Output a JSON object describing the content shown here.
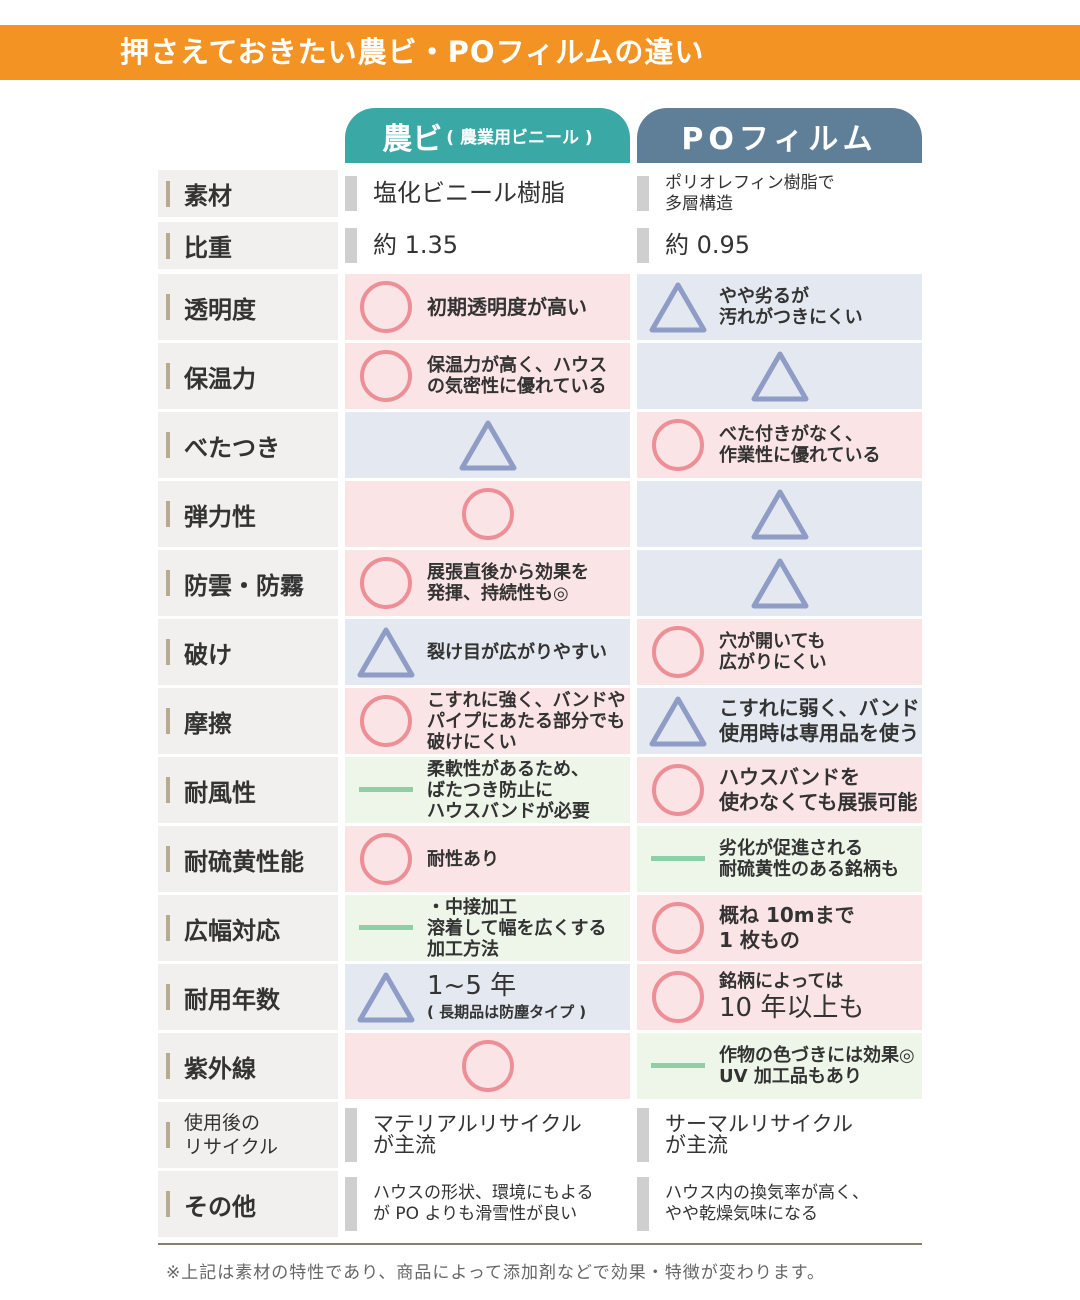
{
  "title": "押さえておきたい農ビ・POフィルムの違い",
  "columns": {
    "col1_main": "農ビ",
    "col1_sub": "( 農業用ビニール )",
    "col2": "POフィルム"
  },
  "colors": {
    "banner": "#f39323",
    "col1": "#3aa9a6",
    "col2": "#5f7f99",
    "circle": "#ec8f96",
    "triangle": "#8e9cc6",
    "dash": "#8fcfa8"
  },
  "rows": [
    {
      "label": "素材",
      "plain": true,
      "c1": {
        "text": "塩化ビニール樹脂",
        "size": "big"
      },
      "c2": {
        "text": "ポリオレフィン樹脂で\n多層構造",
        "size": "sm"
      }
    },
    {
      "label": "比重",
      "plain": true,
      "c1": {
        "text": "約 1.35",
        "size": "big"
      },
      "c2": {
        "text": "約 0.95",
        "size": "big"
      }
    },
    {
      "label": "透明度",
      "c1": {
        "mark": "circle",
        "text": "初期透明度が高い",
        "size": "lg"
      },
      "c2": {
        "mark": "triangle",
        "text": "やや劣るが\n汚れがつきにくい"
      }
    },
    {
      "label": "保温力",
      "c1": {
        "mark": "circle",
        "text": "保温力が高く、ハウス\nの気密性に優れている"
      },
      "c2": {
        "mark": "triangle"
      }
    },
    {
      "label": "べたつき",
      "c1": {
        "mark": "triangle"
      },
      "c2": {
        "mark": "circle",
        "text": "べた付きがなく、\n作業性に優れている"
      }
    },
    {
      "label": "弾力性",
      "c1": {
        "mark": "circle"
      },
      "c2": {
        "mark": "triangle"
      }
    },
    {
      "label": "防雲・防霧",
      "c1": {
        "mark": "circle",
        "text": "展張直後から効果を\n発揮、持続性も◎"
      },
      "c2": {
        "mark": "triangle"
      }
    },
    {
      "label": "破け",
      "c1": {
        "mark": "triangle",
        "text": "裂け目が広がりやすい"
      },
      "c2": {
        "mark": "circle",
        "text": "穴が開いても\n広がりにくい"
      }
    },
    {
      "label": "摩擦",
      "c1": {
        "mark": "circle",
        "text": "こすれに強く、バンドや\nパイプにあたる部分でも\n破けにくい"
      },
      "c2": {
        "mark": "triangle",
        "text": "こすれに弱く、バンド\n使用時は専用品を使う",
        "size": "lg"
      }
    },
    {
      "label": "耐風性",
      "c1": {
        "mark": "dash",
        "text": "柔軟性があるため、\nばたつき防止に\nハウスバンドが必要"
      },
      "c2": {
        "mark": "circle",
        "text": "ハウスバンドを\n使わなくても展張可能",
        "size": "lg"
      }
    },
    {
      "label": "耐硫黄性能",
      "c1": {
        "mark": "circle",
        "text": "耐性あり"
      },
      "c2": {
        "mark": "dash",
        "text": "劣化が促進される\n耐硫黄性のある銘柄も"
      }
    },
    {
      "label": "広幅対応",
      "c1": {
        "mark": "dash",
        "text": "・中接加工\n溶着して幅を広くする\n加工方法"
      },
      "c2": {
        "mark": "circle",
        "text": "概ね 10mまで\n1 枚もの",
        "size": "lg"
      }
    },
    {
      "label": "耐用年数",
      "c1": {
        "mark": "triangle",
        "text": "1~5 年",
        "sub": "( 長期品は防塵タイプ )"
      },
      "c2": {
        "mark": "circle",
        "text": "銘柄によっては",
        "big": "10 年以上も"
      }
    },
    {
      "label": "紫外線",
      "c1": {
        "mark": "circle"
      },
      "c2": {
        "mark": "dash",
        "text": "作物の色づきには効果◎\nUV 加工品もあり"
      }
    },
    {
      "label": "使用後の\nリサイクル",
      "labelSmall": true,
      "plain": true,
      "c1": {
        "text": "マテリアルリサイクル\nが主流"
      },
      "c2": {
        "text": "サーマルリサイクル\nが主流"
      }
    },
    {
      "label": "その他",
      "plain": true,
      "c1": {
        "text": "ハウスの形状、環境にもよる\nが PO よりも滑雪性が良い",
        "size": "sm"
      },
      "c2": {
        "text": "ハウス内の換気率が高く、\nやや乾燥気味になる",
        "size": "sm"
      }
    }
  ],
  "footnote": "※上記は素材の特性であり、商品によって添加剤などで効果・特徴が変わります。"
}
